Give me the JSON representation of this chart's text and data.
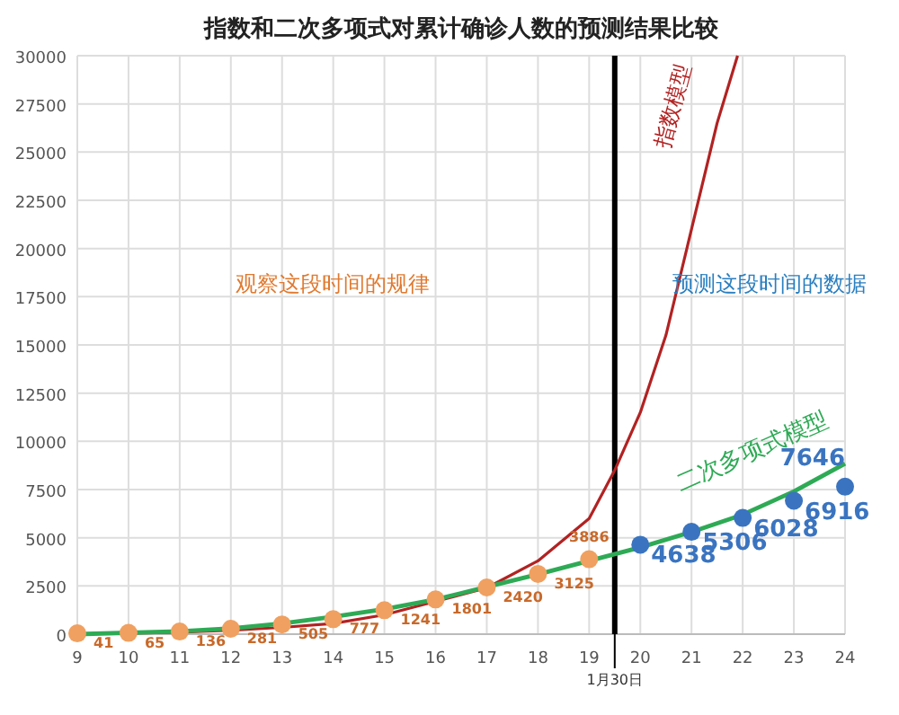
{
  "chart_data": {
    "type": "scatter",
    "title": "指数和二次多项式对累计确诊人数的预测结果比较",
    "xlim": [
      9,
      24
    ],
    "xticks": [
      9,
      10,
      11,
      12,
      13,
      14,
      15,
      16,
      17,
      18,
      19,
      20,
      21,
      22,
      23,
      24
    ],
    "ylim": [
      0,
      30000
    ],
    "yticks": [
      0,
      2500,
      5000,
      7500,
      10000,
      12500,
      15000,
      17500,
      20000,
      22500,
      25000,
      27500,
      30000
    ],
    "grid": true,
    "series": [
      {
        "type": "line",
        "color": "#b22222",
        "x": [
          9,
          11,
          12,
          13,
          14,
          15,
          16,
          17,
          18,
          19,
          19.5,
          20,
          20.5,
          21,
          21.5,
          21.9
        ],
        "values": [
          0,
          100,
          200,
          350,
          550,
          1000,
          1700,
          2400,
          3800,
          6000,
          8500,
          11500,
          15500,
          21000,
          26500,
          30000
        ]
      },
      {
        "type": "line",
        "color": "#2eaa55",
        "x": [
          9,
          11,
          12,
          13,
          14,
          15,
          16,
          17,
          18,
          19,
          20,
          21,
          22,
          23,
          24
        ],
        "values": [
          0,
          150,
          300,
          550,
          900,
          1300,
          1800,
          2450,
          3100,
          3800,
          4500,
          5300,
          6200,
          7400,
          8850
        ]
      },
      {
        "color": "#f0a060",
        "marker": "circle",
        "x": [
          9,
          10,
          11,
          12,
          13,
          14,
          15,
          16,
          17,
          18,
          19
        ],
        "values": [
          41,
          65,
          136,
          281,
          505,
          777,
          1241,
          1801,
          2420,
          3125,
          3886
        ],
        "value_labels": [
          "41",
          "65",
          "136",
          "281",
          "505",
          "777",
          "1241",
          "1801",
          "2420",
          "3125",
          "3886"
        ]
      },
      {
        "color": "#3a74c0",
        "marker": "circle",
        "x": [
          20,
          21,
          22,
          23,
          24
        ],
        "values": [
          4638,
          5306,
          6028,
          6916,
          7646
        ],
        "value_labels": [
          "4638",
          "5306",
          "6028",
          "6916",
          "7646"
        ]
      }
    ],
    "ref_lines": [
      {
        "axis": "x",
        "value": 19.5,
        "label": "1月30日",
        "color": "#000000"
      }
    ],
    "annotations": [
      "观察这段时间的规律",
      "预测这段时间的数据",
      "指数模型",
      "二次多项式模型"
    ]
  }
}
